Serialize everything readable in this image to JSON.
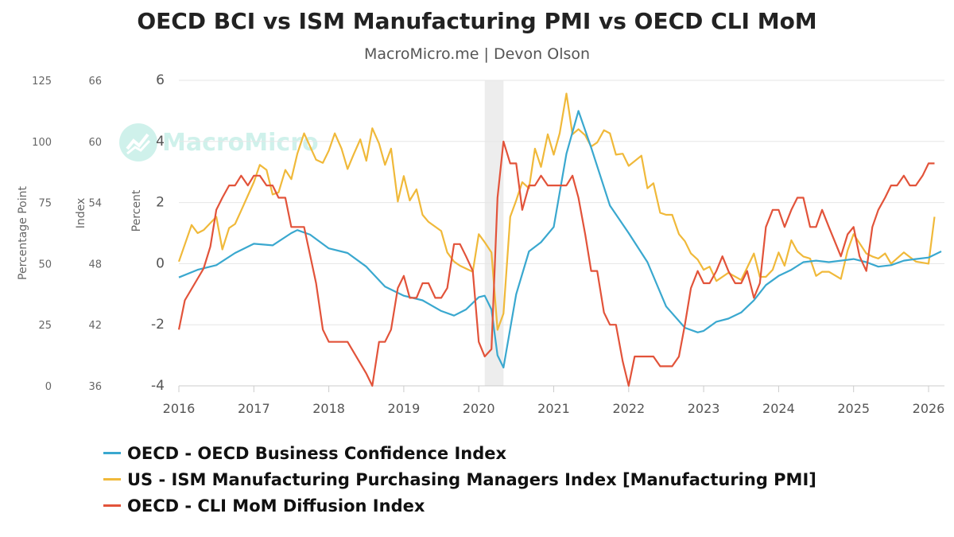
{
  "title": "OECD BCI vs ISM Manufacturing PMI vs OECD CLI MoM",
  "subtitle": "MacroMicro.me | Devon Olson",
  "watermark": "MacroMicro",
  "colors": {
    "bci": "#3aa8cf",
    "pmi": "#f0b93a",
    "cli": "#e2533a",
    "recession_band": "#ededed",
    "axis": "#cccccc"
  },
  "chart_data": {
    "type": "line",
    "x_ticks": [
      "2016",
      "2017",
      "2018",
      "2019",
      "2020",
      "2021",
      "2022",
      "2023",
      "2024",
      "2025",
      "2026"
    ],
    "x_range": [
      2016.0,
      2026.0
    ],
    "shaded_period": [
      2020.08,
      2020.33
    ],
    "axes": {
      "percentage_point": {
        "title": "Percentage Point",
        "range": [
          0,
          125
        ],
        "ticks": [
          "0",
          "25",
          "50",
          "75",
          "100",
          "125"
        ]
      },
      "index": {
        "title": "Index",
        "range": [
          36,
          66
        ],
        "ticks": [
          "36",
          "42",
          "48",
          "54",
          "60",
          "66"
        ]
      },
      "percent": {
        "title": "Percent",
        "range": [
          -4,
          6
        ],
        "ticks": [
          "-4",
          "-2",
          "0",
          "2",
          "4",
          "6"
        ]
      }
    },
    "grid": true,
    "legend_position": "bottom-left",
    "series": [
      {
        "name": "OECD - OECD Business Confidence Index",
        "key": "bci",
        "axis": "percent",
        "x": [
          2016.0,
          2016.25,
          2016.5,
          2016.75,
          2017.0,
          2017.25,
          2017.5,
          2017.58,
          2017.75,
          2018.0,
          2018.25,
          2018.5,
          2018.75,
          2019.0,
          2019.25,
          2019.5,
          2019.67,
          2019.83,
          2020.0,
          2020.08,
          2020.17,
          2020.25,
          2020.33,
          2020.5,
          2020.67,
          2020.83,
          2021.0,
          2021.17,
          2021.33,
          2021.5,
          2021.75,
          2022.0,
          2022.25,
          2022.5,
          2022.75,
          2022.92,
          2023.0,
          2023.17,
          2023.33,
          2023.5,
          2023.67,
          2023.83,
          2024.0,
          2024.17,
          2024.33,
          2024.5,
          2024.67,
          2024.83,
          2025.0,
          2025.17,
          2025.33,
          2025.5,
          2025.67,
          2025.83,
          2026.0,
          2026.17
        ],
        "values": [
          -0.45,
          -0.2,
          -0.05,
          0.35,
          0.65,
          0.6,
          1.0,
          1.1,
          0.95,
          0.5,
          0.35,
          -0.1,
          -0.75,
          -1.05,
          -1.2,
          -1.55,
          -1.7,
          -1.5,
          -1.1,
          -1.05,
          -1.5,
          -3.0,
          -3.4,
          -1.0,
          0.4,
          0.7,
          1.2,
          3.6,
          5.0,
          3.8,
          1.9,
          1.0,
          0.05,
          -1.4,
          -2.1,
          -2.25,
          -2.2,
          -1.9,
          -1.8,
          -1.6,
          -1.2,
          -0.7,
          -0.4,
          -0.2,
          0.05,
          0.1,
          0.05,
          0.1,
          0.15,
          0.05,
          -0.1,
          -0.05,
          0.1,
          0.15,
          0.2,
          0.4
        ]
      },
      {
        "name": "US - ISM Manufacturing Purchasing Managers Index [Manufacturing PMI]",
        "key": "pmi",
        "axis": "index",
        "x": [
          2016.0,
          2016.17,
          2016.25,
          2016.33,
          2016.5,
          2016.58,
          2016.67,
          2016.75,
          2016.83,
          2017.0,
          2017.08,
          2017.17,
          2017.25,
          2017.33,
          2017.42,
          2017.5,
          2017.58,
          2017.67,
          2017.83,
          2017.92,
          2018.0,
          2018.08,
          2018.17,
          2018.25,
          2018.33,
          2018.42,
          2018.5,
          2018.58,
          2018.67,
          2018.75,
          2018.83,
          2018.92,
          2019.0,
          2019.08,
          2019.17,
          2019.25,
          2019.33,
          2019.5,
          2019.58,
          2019.67,
          2019.75,
          2019.92,
          2020.0,
          2020.08,
          2020.17,
          2020.25,
          2020.33,
          2020.42,
          2020.5,
          2020.58,
          2020.67,
          2020.75,
          2020.83,
          2020.92,
          2021.0,
          2021.08,
          2021.17,
          2021.25,
          2021.33,
          2021.42,
          2021.5,
          2021.58,
          2021.67,
          2021.75,
          2021.83,
          2021.92,
          2022.0,
          2022.17,
          2022.25,
          2022.33,
          2022.42,
          2022.5,
          2022.58,
          2022.67,
          2022.75,
          2022.83,
          2022.92,
          2023.0,
          2023.08,
          2023.17,
          2023.33,
          2023.5,
          2023.58,
          2023.67,
          2023.75,
          2023.83,
          2023.92,
          2024.0,
          2024.08,
          2024.17,
          2024.25,
          2024.33,
          2024.42,
          2024.5,
          2024.58,
          2024.67,
          2024.83,
          2024.92,
          2025.0,
          2025.17,
          2025.25,
          2025.33,
          2025.42,
          2025.5,
          2025.67,
          2025.83,
          2026.0,
          2026.08
        ],
        "values": [
          48.2,
          51.8,
          51.0,
          51.3,
          52.6,
          49.4,
          51.5,
          51.9,
          53.2,
          56.0,
          57.7,
          57.2,
          54.8,
          55.0,
          57.2,
          56.3,
          58.8,
          60.8,
          58.2,
          57.9,
          59.1,
          60.8,
          59.3,
          57.3,
          58.7,
          60.2,
          58.1,
          61.3,
          59.8,
          57.7,
          59.3,
          54.1,
          56.6,
          54.2,
          55.3,
          52.8,
          52.1,
          51.2,
          49.1,
          48.2,
          47.8,
          47.2,
          50.9,
          50.1,
          49.1,
          41.5,
          43.1,
          52.6,
          54.2,
          56.0,
          55.4,
          59.3,
          57.5,
          60.7,
          58.7,
          60.8,
          64.7,
          60.7,
          61.2,
          60.6,
          59.5,
          59.9,
          61.1,
          60.8,
          58.7,
          58.8,
          57.6,
          58.6,
          55.4,
          55.9,
          53.0,
          52.8,
          52.8,
          50.9,
          50.2,
          49.0,
          48.4,
          47.4,
          47.7,
          46.3,
          47.1,
          46.4,
          47.6,
          49.0,
          46.7,
          46.7,
          47.4,
          49.1,
          47.8,
          50.3,
          49.2,
          48.7,
          48.5,
          46.8,
          47.2,
          47.2,
          46.5,
          49.3,
          50.9,
          49.0,
          48.7,
          48.5,
          49.0,
          48.0,
          49.1,
          48.2,
          48.0,
          52.6
        ]
      },
      {
        "name": "OECD - CLI MoM Diffusion Index",
        "key": "cli",
        "axis": "percentage_point",
        "x": [
          2016.0,
          2016.08,
          2016.33,
          2016.42,
          2016.5,
          2016.58,
          2016.67,
          2016.75,
          2016.83,
          2016.92,
          2017.0,
          2017.08,
          2017.17,
          2017.25,
          2017.33,
          2017.42,
          2017.5,
          2017.58,
          2017.67,
          2017.83,
          2017.92,
          2018.0,
          2018.08,
          2018.17,
          2018.25,
          2018.5,
          2018.58,
          2018.67,
          2018.75,
          2018.83,
          2018.92,
          2019.0,
          2019.08,
          2019.17,
          2019.25,
          2019.33,
          2019.42,
          2019.5,
          2019.58,
          2019.67,
          2019.75,
          2019.83,
          2019.92,
          2020.0,
          2020.08,
          2020.17,
          2020.25,
          2020.33,
          2020.42,
          2020.5,
          2020.58,
          2020.67,
          2020.75,
          2020.83,
          2020.92,
          2021.0,
          2021.17,
          2021.25,
          2021.33,
          2021.42,
          2021.5,
          2021.58,
          2021.67,
          2021.75,
          2021.83,
          2021.92,
          2022.0,
          2022.08,
          2022.17,
          2022.33,
          2022.42,
          2022.5,
          2022.58,
          2022.67,
          2022.75,
          2022.83,
          2022.92,
          2023.0,
          2023.08,
          2023.17,
          2023.25,
          2023.33,
          2023.42,
          2023.5,
          2023.58,
          2023.67,
          2023.75,
          2023.83,
          2023.92,
          2024.0,
          2024.08,
          2024.17,
          2024.25,
          2024.33,
          2024.42,
          2024.5,
          2024.58,
          2024.67,
          2024.83,
          2024.92,
          2025.0,
          2025.08,
          2025.17,
          2025.25,
          2025.33,
          2025.42,
          2025.5,
          2025.58,
          2025.67,
          2025.75,
          2025.83,
          2025.92,
          2026.0,
          2026.08
        ],
        "values": [
          23,
          35,
          48,
          57,
          72,
          77,
          82,
          82,
          86,
          82,
          86,
          86,
          82,
          82,
          77,
          77,
          65,
          65,
          65,
          42,
          23,
          18,
          18,
          18,
          18,
          5,
          0,
          18,
          18,
          23,
          40,
          45,
          36,
          36,
          42,
          42,
          36,
          36,
          40,
          58,
          58,
          53,
          47,
          18,
          12,
          15,
          77,
          100,
          91,
          91,
          72,
          82,
          82,
          86,
          82,
          82,
          82,
          86,
          77,
          62,
          47,
          47,
          30,
          25,
          25,
          10,
          0,
          12,
          12,
          12,
          8,
          8,
          8,
          12,
          25,
          40,
          47,
          42,
          42,
          47,
          53,
          47,
          42,
          42,
          47,
          36,
          42,
          65,
          72,
          72,
          65,
          72,
          77,
          77,
          65,
          65,
          72,
          65,
          53,
          62,
          65,
          53,
          47,
          65,
          72,
          77,
          82,
          82,
          86,
          82,
          82,
          86,
          91,
          91
        ]
      }
    ]
  },
  "legend": [
    {
      "key": "bci",
      "label": "OECD - OECD Business Confidence Index"
    },
    {
      "key": "pmi",
      "label": "US - ISM Manufacturing Purchasing Managers Index [Manufacturing PMI]"
    },
    {
      "key": "cli",
      "label": "OECD - CLI MoM Diffusion Index"
    }
  ]
}
